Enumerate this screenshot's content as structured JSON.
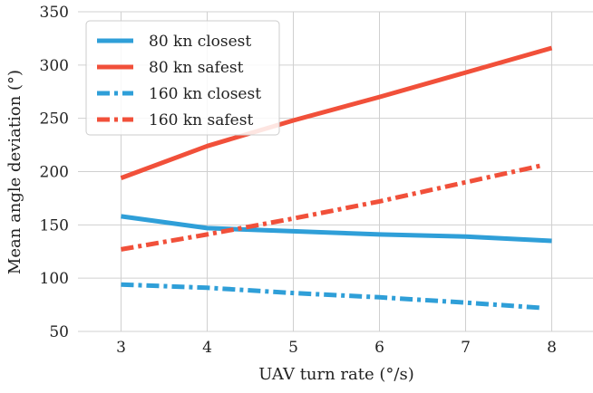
{
  "chart_data": {
    "type": "line",
    "xlabel": "UAV turn rate (°/s)",
    "ylabel": "Mean angle deviation (°)",
    "xlim": [
      2.5,
      8.5
    ],
    "ylim": [
      50,
      350
    ],
    "x_ticks": [
      "3",
      "4",
      "5",
      "6",
      "7",
      "8"
    ],
    "y_ticks": [
      "50",
      "100",
      "150",
      "200",
      "250",
      "300",
      "350"
    ],
    "grid": true,
    "legend_position": "top-left",
    "series": [
      {
        "name": "80 kn closest",
        "color": "#2f9fd8",
        "style": "solid",
        "x": [
          3,
          4,
          5,
          6,
          7,
          8
        ],
        "y": [
          158,
          147,
          144,
          141,
          139,
          135
        ]
      },
      {
        "name": "80 kn safest",
        "color": "#f1503a",
        "style": "solid",
        "x": [
          3,
          4,
          5,
          6,
          7,
          8
        ],
        "y": [
          194,
          224,
          248,
          270,
          293,
          316
        ]
      },
      {
        "name": "160 kn closest",
        "color": "#2f9fd8",
        "style": "dashdot",
        "x": [
          3,
          4,
          5,
          6,
          7,
          7.9
        ],
        "y": [
          94,
          91,
          86,
          82,
          77,
          72
        ]
      },
      {
        "name": "160 kn safest",
        "color": "#f1503a",
        "style": "dashdot",
        "x": [
          3,
          4,
          5,
          6,
          7,
          7.9
        ],
        "y": [
          127,
          141,
          156,
          172,
          190,
          206
        ]
      }
    ]
  }
}
